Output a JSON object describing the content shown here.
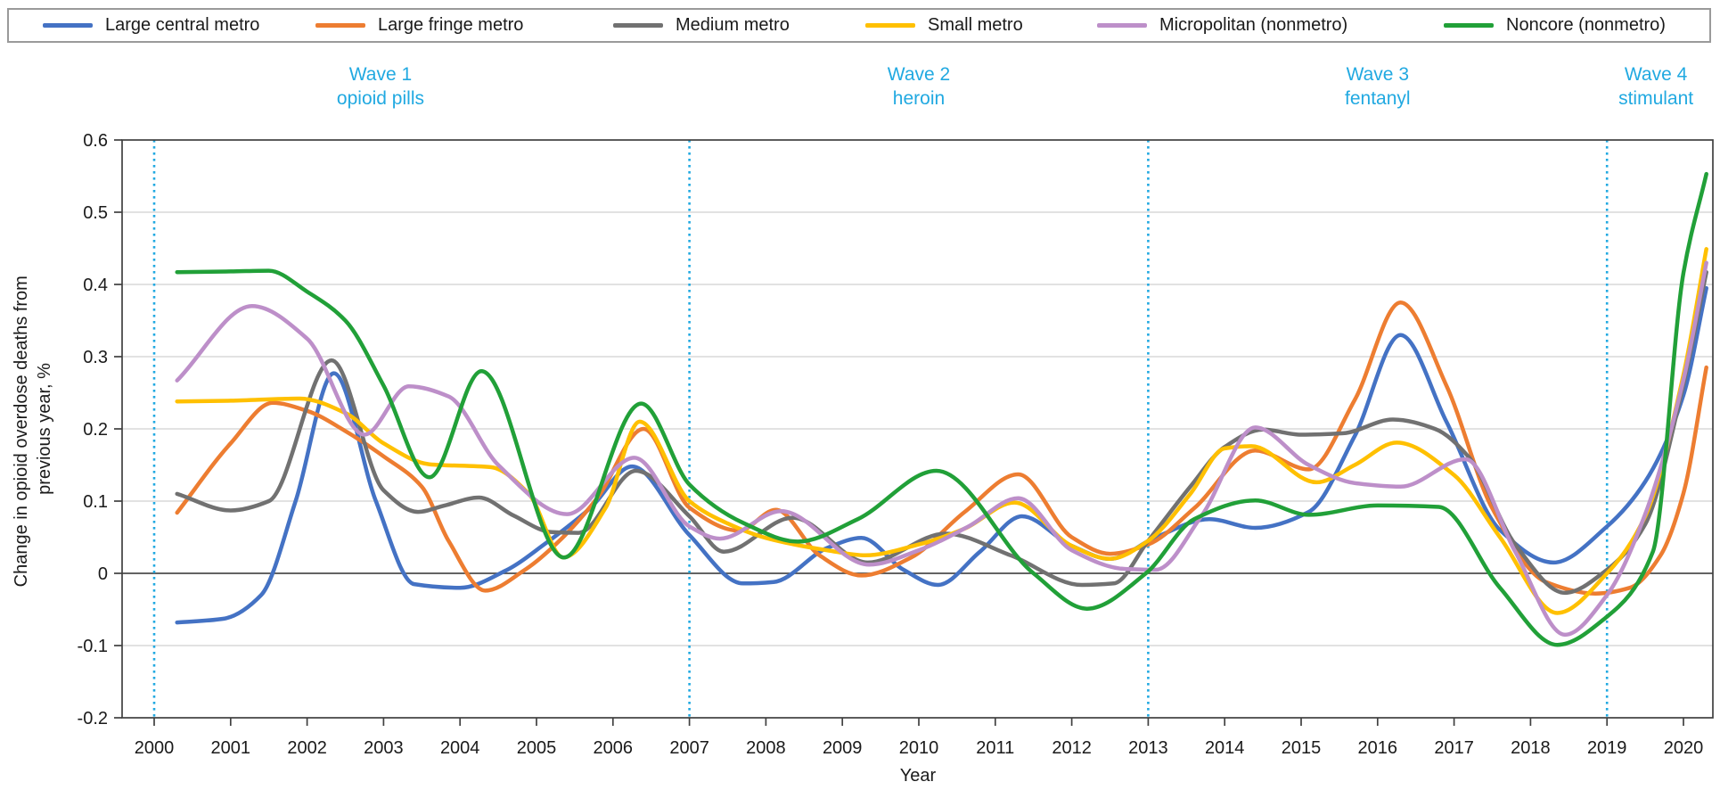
{
  "chart_data": {
    "type": "line",
    "title": "",
    "xlabel": "Year",
    "ylabel": "Change in opioid overdose deaths from previous year, %",
    "ylabel_lines": [
      "Change in opioid overdose deaths from",
      "previous year, %"
    ],
    "xlim": [
      1999.6,
      2020.42
    ],
    "ylim": [
      -0.2,
      0.6
    ],
    "grid": "horizontal",
    "legend_position": "top",
    "x_ticks": [
      2000,
      2001,
      2002,
      2003,
      2004,
      2005,
      2006,
      2007,
      2008,
      2009,
      2010,
      2011,
      2012,
      2013,
      2014,
      2015,
      2016,
      2017,
      2018,
      2019,
      2020
    ],
    "y_ticks": [
      {
        "value": 0.6,
        "label": "0.6"
      },
      {
        "value": 0.5,
        "label": "0.5"
      },
      {
        "value": 0.4,
        "label": "0.4"
      },
      {
        "value": 0.3,
        "label": "0.3"
      },
      {
        "value": 0.2,
        "label": "0.2"
      },
      {
        "value": 0.1,
        "label": "0.1"
      },
      {
        "value": 0,
        "label": "0"
      },
      {
        "value": -0.1,
        "label": "-0.1"
      },
      {
        "value": -0.2,
        "label": "-0.2"
      }
    ],
    "reference_lines": {
      "style": "dotted",
      "color": "#21A9E1",
      "years": [
        2000,
        2007,
        2013,
        2019
      ]
    },
    "wave_annotations": [
      {
        "title": "Wave 1",
        "subtitle": "opioid pills",
        "x": 2002.96
      },
      {
        "title": "Wave 2",
        "subtitle": "heroin",
        "x": 2010.0
      },
      {
        "title": "Wave 3",
        "subtitle": "fentanyl",
        "x": 2016.0
      },
      {
        "title": "Wave 4",
        "subtitle": "stimulant",
        "x": 2019.64
      }
    ],
    "colors": {
      "gridline": "#d9d9d9",
      "zero_line": "#4d4d4d",
      "frame": "#404040",
      "tick": "#404040",
      "annotation_cyan": "#21A9E1"
    },
    "series": [
      {
        "name": "Large central metro",
        "color": "#4472C4",
        "points": [
          [
            2000.3,
            -0.068
          ],
          [
            2000.9,
            -0.063
          ],
          [
            2001.4,
            -0.03
          ],
          [
            2001.85,
            0.1
          ],
          [
            2002.35,
            0.277
          ],
          [
            2002.9,
            0.1
          ],
          [
            2003.4,
            -0.015
          ],
          [
            2004.0,
            -0.02
          ],
          [
            2004.6,
            0.004
          ],
          [
            2005.1,
            0.04
          ],
          [
            2005.7,
            0.09
          ],
          [
            2006.25,
            0.148
          ],
          [
            2007.0,
            0.053
          ],
          [
            2007.7,
            -0.014
          ],
          [
            2008.1,
            -0.012
          ],
          [
            2008.8,
            0.035
          ],
          [
            2009.25,
            0.049
          ],
          [
            2009.8,
            0.005
          ],
          [
            2010.25,
            -0.016
          ],
          [
            2010.8,
            0.03
          ],
          [
            2011.35,
            0.079
          ],
          [
            2012.0,
            0.038
          ],
          [
            2012.5,
            0.02
          ],
          [
            2013.1,
            0.05
          ],
          [
            2013.8,
            0.075
          ],
          [
            2014.4,
            0.063
          ],
          [
            2015.1,
            0.085
          ],
          [
            2015.7,
            0.19
          ],
          [
            2016.3,
            0.33
          ],
          [
            2016.9,
            0.21
          ],
          [
            2017.6,
            0.06
          ],
          [
            2018.3,
            0.015
          ],
          [
            2019.0,
            0.065
          ],
          [
            2019.5,
            0.127
          ],
          [
            2020.0,
            0.247
          ],
          [
            2020.3,
            0.395
          ]
        ]
      },
      {
        "name": "Large fringe metro",
        "color": "#ED7D31",
        "points": [
          [
            2000.3,
            0.084
          ],
          [
            2001.0,
            0.18
          ],
          [
            2001.55,
            0.236
          ],
          [
            2002.0,
            0.225
          ],
          [
            2002.5,
            0.197
          ],
          [
            2003.0,
            0.162
          ],
          [
            2003.5,
            0.12
          ],
          [
            2003.85,
            0.045
          ],
          [
            2004.33,
            -0.024
          ],
          [
            2004.85,
            0.005
          ],
          [
            2005.3,
            0.045
          ],
          [
            2005.8,
            0.105
          ],
          [
            2006.4,
            0.2
          ],
          [
            2007.0,
            0.091
          ],
          [
            2007.65,
            0.059
          ],
          [
            2008.13,
            0.088
          ],
          [
            2008.7,
            0.025
          ],
          [
            2009.25,
            -0.003
          ],
          [
            2009.9,
            0.022
          ],
          [
            2010.6,
            0.085
          ],
          [
            2011.3,
            0.137
          ],
          [
            2012.0,
            0.05
          ],
          [
            2012.5,
            0.027
          ],
          [
            2013.0,
            0.04
          ],
          [
            2013.6,
            0.09
          ],
          [
            2014.4,
            0.17
          ],
          [
            2015.1,
            0.144
          ],
          [
            2015.7,
            0.24
          ],
          [
            2016.3,
            0.375
          ],
          [
            2016.9,
            0.26
          ],
          [
            2017.5,
            0.09
          ],
          [
            2018.2,
            -0.012
          ],
          [
            2018.85,
            -0.028
          ],
          [
            2019.3,
            -0.02
          ],
          [
            2019.7,
            0.025
          ],
          [
            2020.0,
            0.111
          ],
          [
            2020.3,
            0.285
          ]
        ]
      },
      {
        "name": "Medium metro",
        "color": "#717171",
        "points": [
          [
            2000.3,
            0.11
          ],
          [
            2001.0,
            0.087
          ],
          [
            2001.5,
            0.1
          ],
          [
            2002.32,
            0.295
          ],
          [
            2003.0,
            0.115
          ],
          [
            2003.45,
            0.085
          ],
          [
            2003.8,
            0.094
          ],
          [
            2004.25,
            0.105
          ],
          [
            2004.7,
            0.08
          ],
          [
            2005.2,
            0.057
          ],
          [
            2005.55,
            0.056
          ],
          [
            2006.3,
            0.142
          ],
          [
            2007.0,
            0.079
          ],
          [
            2007.45,
            0.03
          ],
          [
            2008.35,
            0.077
          ],
          [
            2009.33,
            0.015
          ],
          [
            2010.35,
            0.055
          ],
          [
            2011.2,
            0.025
          ],
          [
            2012.13,
            -0.016
          ],
          [
            2012.55,
            -0.014
          ],
          [
            2013.0,
            0.045
          ],
          [
            2013.55,
            0.12
          ],
          [
            2014.0,
            0.175
          ],
          [
            2014.5,
            0.199
          ],
          [
            2015.0,
            0.192
          ],
          [
            2015.55,
            0.194
          ],
          [
            2016.2,
            0.213
          ],
          [
            2016.75,
            0.2
          ],
          [
            2017.2,
            0.16
          ],
          [
            2017.8,
            0.04
          ],
          [
            2018.45,
            -0.027
          ],
          [
            2019.0,
            0.005
          ],
          [
            2019.5,
            0.068
          ],
          [
            2020.0,
            0.262
          ],
          [
            2020.3,
            0.417
          ]
        ]
      },
      {
        "name": "Small metro",
        "color": "#FFC000",
        "points": [
          [
            2000.3,
            0.238
          ],
          [
            2001.0,
            0.239
          ],
          [
            2001.9,
            0.242
          ],
          [
            2002.5,
            0.222
          ],
          [
            2003.0,
            0.18
          ],
          [
            2003.6,
            0.151
          ],
          [
            2004.4,
            0.147
          ],
          [
            2004.9,
            0.11
          ],
          [
            2005.35,
            0.022
          ],
          [
            2005.9,
            0.09
          ],
          [
            2006.35,
            0.21
          ],
          [
            2007.0,
            0.1
          ],
          [
            2007.5,
            0.069
          ],
          [
            2008.0,
            0.049
          ],
          [
            2008.8,
            0.032
          ],
          [
            2009.3,
            0.025
          ],
          [
            2010.0,
            0.04
          ],
          [
            2010.6,
            0.062
          ],
          [
            2011.25,
            0.098
          ],
          [
            2012.0,
            0.038
          ],
          [
            2012.5,
            0.02
          ],
          [
            2013.0,
            0.045
          ],
          [
            2013.55,
            0.11
          ],
          [
            2014.0,
            0.173
          ],
          [
            2014.35,
            0.176
          ],
          [
            2015.2,
            0.126
          ],
          [
            2015.7,
            0.15
          ],
          [
            2016.25,
            0.181
          ],
          [
            2017.0,
            0.136
          ],
          [
            2017.6,
            0.05
          ],
          [
            2018.35,
            -0.055
          ],
          [
            2019.0,
            0.0
          ],
          [
            2019.5,
            0.079
          ],
          [
            2020.0,
            0.275
          ],
          [
            2020.3,
            0.449
          ]
        ]
      },
      {
        "name": "Micropolitan (nonmetro)",
        "color": "#BD8FC9",
        "points": [
          [
            2000.3,
            0.267
          ],
          [
            2001.28,
            0.37
          ],
          [
            2002.0,
            0.325
          ],
          [
            2002.75,
            0.192
          ],
          [
            2003.33,
            0.259
          ],
          [
            2003.85,
            0.245
          ],
          [
            2004.5,
            0.15
          ],
          [
            2005.4,
            0.082
          ],
          [
            2006.28,
            0.16
          ],
          [
            2007.0,
            0.065
          ],
          [
            2007.4,
            0.048
          ],
          [
            2008.2,
            0.086
          ],
          [
            2009.35,
            0.012
          ],
          [
            2010.0,
            0.032
          ],
          [
            2010.65,
            0.065
          ],
          [
            2011.3,
            0.104
          ],
          [
            2012.0,
            0.032
          ],
          [
            2012.7,
            0.006
          ],
          [
            2013.1,
            0.005
          ],
          [
            2013.7,
            0.08
          ],
          [
            2014.4,
            0.202
          ],
          [
            2015.1,
            0.15
          ],
          [
            2015.7,
            0.125
          ],
          [
            2016.3,
            0.12
          ],
          [
            2017.15,
            0.158
          ],
          [
            2017.8,
            0.03
          ],
          [
            2018.45,
            -0.085
          ],
          [
            2019.0,
            -0.03
          ],
          [
            2019.5,
            0.082
          ],
          [
            2020.0,
            0.268
          ],
          [
            2020.3,
            0.43
          ]
        ]
      },
      {
        "name": "Noncore (nonmetro)",
        "color": "#21A038",
        "points": [
          [
            2000.3,
            0.417
          ],
          [
            2001.0,
            0.418
          ],
          [
            2001.5,
            0.419
          ],
          [
            2002.0,
            0.39
          ],
          [
            2002.5,
            0.35
          ],
          [
            2003.0,
            0.26
          ],
          [
            2003.6,
            0.133
          ],
          [
            2004.28,
            0.28
          ],
          [
            2005.36,
            0.022
          ],
          [
            2006.37,
            0.235
          ],
          [
            2007.0,
            0.123
          ],
          [
            2007.7,
            0.07
          ],
          [
            2008.42,
            0.044
          ],
          [
            2009.2,
            0.075
          ],
          [
            2010.23,
            0.142
          ],
          [
            2011.5,
            0.0
          ],
          [
            2012.2,
            -0.049
          ],
          [
            2012.97,
            0.0
          ],
          [
            2013.6,
            0.075
          ],
          [
            2014.4,
            0.101
          ],
          [
            2015.1,
            0.081
          ],
          [
            2016.0,
            0.094
          ],
          [
            2016.8,
            0.092
          ],
          [
            2017.6,
            -0.02
          ],
          [
            2018.35,
            -0.099
          ],
          [
            2019.0,
            -0.06
          ],
          [
            2019.6,
            0.03
          ],
          [
            2020.0,
            0.416
          ],
          [
            2020.3,
            0.553
          ]
        ]
      }
    ]
  }
}
